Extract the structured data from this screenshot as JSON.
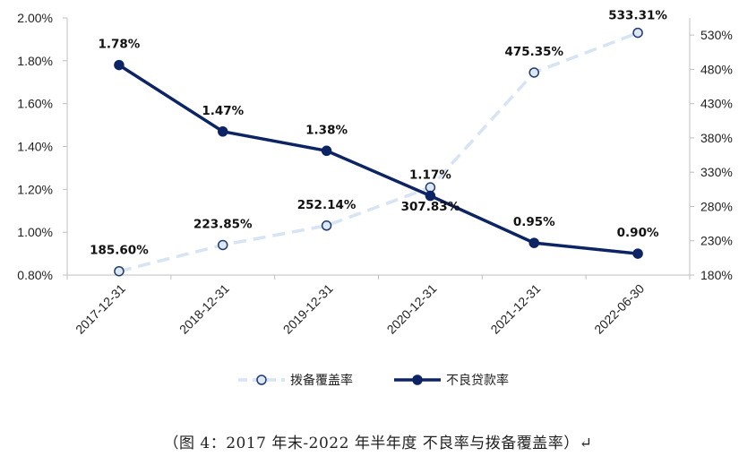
{
  "chart_data": {
    "type": "line",
    "categories": [
      "2017-12-31",
      "2018-12-31",
      "2019-12-31",
      "2020-12-31",
      "2021-12-31",
      "2022-06-30"
    ],
    "series": [
      {
        "name": "拨备覆盖率",
        "axis": "right",
        "values": [
          185.6,
          223.85,
          252.14,
          307.83,
          475.35,
          533.31
        ],
        "labels": [
          "185.60%",
          "223.85%",
          "252.14%",
          "307.83%",
          "475.35%",
          "533.31%"
        ],
        "color": "#d6e4f3",
        "marker_fill": "#dde8f4",
        "marker_stroke": "#1f3a6e"
      },
      {
        "name": "不良贷款率",
        "axis": "left",
        "values": [
          1.78,
          1.47,
          1.38,
          1.17,
          0.95,
          0.9
        ],
        "labels": [
          "1.78%",
          "1.47%",
          "1.38%",
          "1.17%",
          "0.95%",
          "0.90%"
        ],
        "color": "#0d2464",
        "marker_fill": "#0d2464",
        "marker_stroke": "#0d2464"
      }
    ],
    "y_left": {
      "min": 0.8,
      "max": 2.0,
      "ticks": [
        "0.80%",
        "1.00%",
        "1.20%",
        "1.40%",
        "1.60%",
        "1.80%",
        "2.00%"
      ]
    },
    "y_right": {
      "min": 180,
      "max": 555,
      "ticks": [
        "180%",
        "230%",
        "280%",
        "330%",
        "380%",
        "430%",
        "480%",
        "530%"
      ]
    },
    "legend_position": "bottom"
  },
  "caption": "（图 4：2017 年末-2022 年半年度 不良率与拨备覆盖率）↵"
}
